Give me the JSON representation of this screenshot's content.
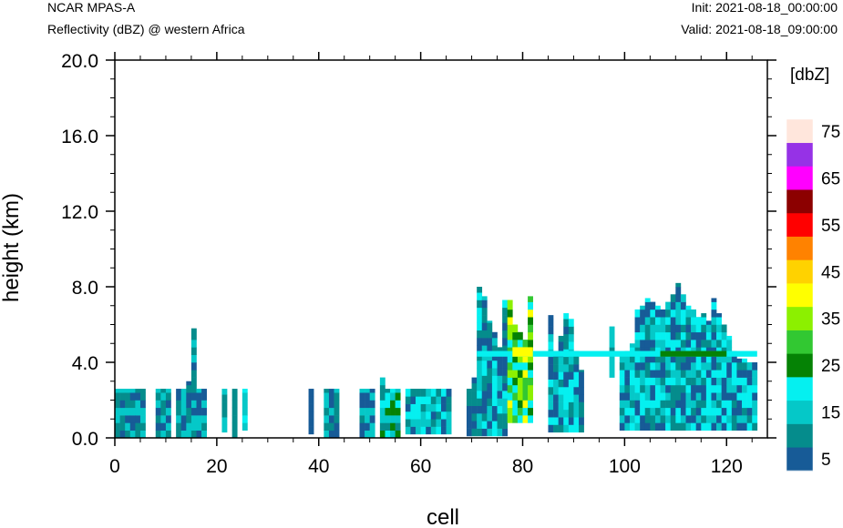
{
  "header": {
    "top_left_line1": "NCAR MPAS-A",
    "top_left_line2": "Reflectivity (dBZ) @ western Africa",
    "top_right_line1": "Init: 2021-08-18_00:00:00",
    "top_right_line2": "Valid: 2021-08-18_09:00:00"
  },
  "chart_data": {
    "type": "heatmap",
    "title": "Reflectivity (dBZ) @ western Africa",
    "xlabel": "cell",
    "ylabel": "height (km)",
    "xlim": [
      0,
      128
    ],
    "ylim": [
      0,
      20
    ],
    "x_ticks": [
      0,
      20,
      40,
      60,
      80,
      100,
      120
    ],
    "x_tick_labels": [
      "0",
      "20",
      "40",
      "60",
      "80",
      "100",
      "120"
    ],
    "y_ticks": [
      0,
      4,
      8,
      12,
      16,
      20
    ],
    "y_tick_labels": [
      "0.0",
      "4.0",
      "8.0",
      "12.0",
      "16.0",
      "20.0"
    ],
    "colorbar": {
      "unit_label": "[dbZ]",
      "levels": [
        5,
        10,
        15,
        20,
        25,
        30,
        35,
        40,
        45,
        50,
        55,
        60,
        65,
        70,
        75
      ],
      "tick_labels": [
        "5",
        "15",
        "25",
        "35",
        "45",
        "55",
        "65",
        "75"
      ],
      "colors": [
        "#175B97",
        "#058C8C",
        "#05C8C8",
        "#05F0F0",
        "#058205",
        "#32C832",
        "#8CF000",
        "#FFFF00",
        "#FFD200",
        "#FF8200",
        "#FF0000",
        "#8C0000",
        "#FF00FF",
        "#9632E6",
        "#FFE6DC"
      ]
    },
    "columns": [
      {
        "x": [
          0,
          6
        ],
        "tops": [
          2.6,
          2.6,
          2.6,
          2.6,
          2.6,
          2.6
        ],
        "bottom": 0,
        "mix": [
          2,
          1,
          0
        ]
      },
      {
        "x": [
          8,
          11
        ],
        "tops": [
          2.6,
          2.6,
          2.6
        ],
        "bottom": 0,
        "mix": [
          1,
          2,
          0
        ]
      },
      {
        "x": [
          12,
          18
        ],
        "tops": [
          2.6,
          2.6,
          3.0,
          5.8,
          2.6,
          2.6
        ],
        "bottom": 0,
        "mix": [
          0,
          1,
          2
        ]
      },
      {
        "x": [
          21,
          22
        ],
        "tops": [
          2.6
        ],
        "bottom": 0.3,
        "mix": [
          2,
          1
        ]
      },
      {
        "x": [
          23,
          24
        ],
        "tops": [
          2.6
        ],
        "bottom": 0,
        "mix": [
          1,
          0
        ]
      },
      {
        "x": [
          25,
          26
        ],
        "tops": [
          2.6
        ],
        "bottom": 0.4,
        "mix": [
          2,
          3
        ]
      },
      {
        "x": [
          38,
          39
        ],
        "tops": [
          2.6
        ],
        "bottom": 0.2,
        "mix": [
          0,
          1
        ]
      },
      {
        "x": [
          41,
          44
        ],
        "tops": [
          2.6,
          2.6,
          2.6
        ],
        "bottom": 0,
        "mix": [
          0,
          1,
          2
        ]
      },
      {
        "x": [
          48,
          51
        ],
        "tops": [
          2.6,
          2.6,
          2.6
        ],
        "bottom": 0,
        "mix": [
          1,
          0,
          2
        ]
      },
      {
        "x": [
          52,
          56
        ],
        "tops": [
          3.2,
          2.6,
          2.6,
          2.6
        ],
        "bottom": 0,
        "mix": [
          4,
          3,
          2,
          1
        ]
      },
      {
        "x": [
          57,
          66
        ],
        "tops": [
          2.6,
          2.6,
          2.6,
          2.6,
          2.6,
          2.6,
          2.6,
          2.6,
          2.6
        ],
        "bottom": 0.2,
        "mix": [
          2,
          3,
          1,
          0
        ]
      },
      {
        "x": [
          69,
          71
        ],
        "tops": [
          2.6,
          3.2
        ],
        "bottom": 0.1,
        "mix": [
          0,
          1
        ]
      },
      {
        "x": [
          71,
          77
        ],
        "tops": [
          8.0,
          7.5,
          6.2,
          5.6,
          4.8,
          7.3
        ],
        "bottom": 0.1,
        "mix": [
          0,
          1,
          2,
          3
        ]
      },
      {
        "x": [
          77,
          82
        ],
        "tops": [
          7.3,
          6.0,
          5.6,
          5.2,
          7.5
        ],
        "bottom": 0.8,
        "mix": [
          4,
          5,
          6,
          3,
          7
        ]
      },
      {
        "x": [
          85,
          92
        ],
        "tops": [
          6.5,
          4.6,
          5.4,
          6.6,
          6.3,
          4.6,
          3.6
        ],
        "bottom": 0.3,
        "mix": [
          0,
          1,
          2,
          3
        ]
      },
      {
        "x": [
          97,
          98
        ],
        "tops": [
          5.9
        ],
        "bottom": 3.2,
        "mix": [
          2,
          1
        ]
      },
      {
        "x": [
          99,
          126
        ],
        "tops": [
          4.4,
          4.6,
          5.0,
          6.8,
          7.0,
          7.4,
          7.2,
          7.0,
          6.8,
          7.2,
          7.6,
          8.2,
          7.6,
          7.0,
          6.8,
          6.4,
          6.6,
          6.2,
          7.4,
          6.6,
          6.0,
          5.4,
          4.6,
          4.2,
          4.2,
          4.0,
          4.0
        ],
        "bottom": 0.4,
        "mix": [
          0,
          1,
          2,
          3
        ]
      }
    ],
    "bands": [
      {
        "x": [
          71,
          126
        ],
        "y": [
          4.3,
          4.6
        ],
        "level_index": 3
      },
      {
        "x": [
          107,
          120
        ],
        "y": [
          4.3,
          4.6
        ],
        "level_index": 4
      },
      {
        "x": [
          78,
          82
        ],
        "y": [
          4.3,
          4.8
        ],
        "level_index": 7
      }
    ]
  }
}
